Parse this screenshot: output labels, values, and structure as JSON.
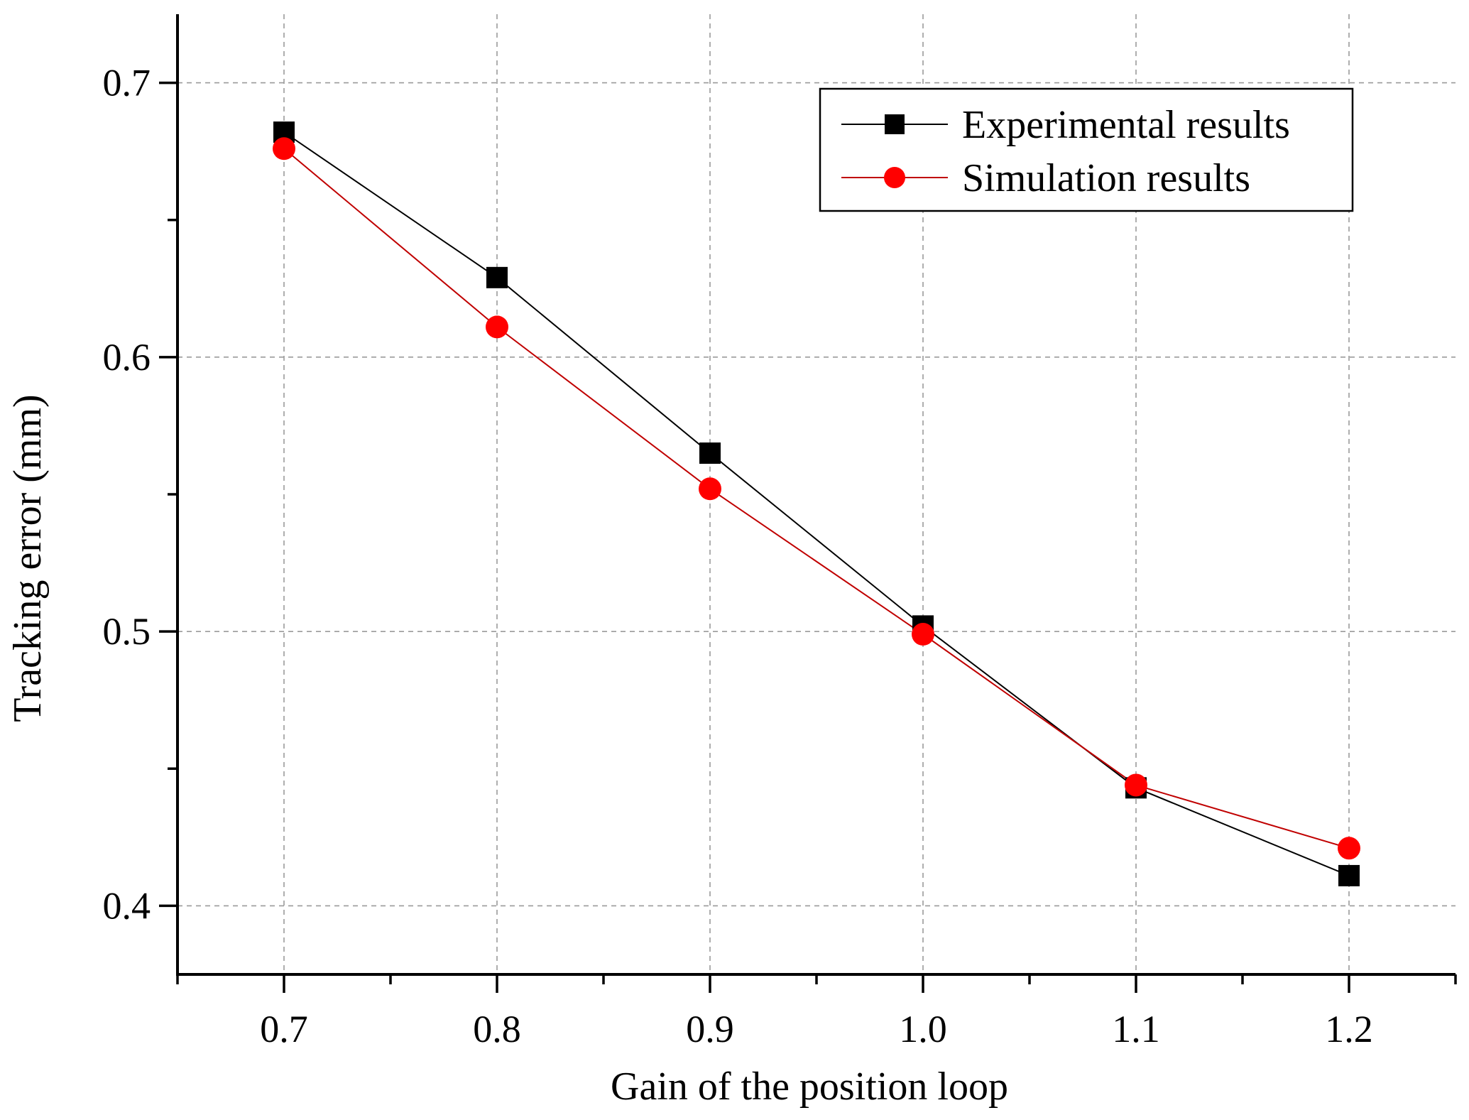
{
  "chart_data": {
    "type": "line",
    "title": "",
    "xlabel": "Gain of the position loop",
    "ylabel": "Tracking error (mm)",
    "xlim": [
      0.65,
      1.25
    ],
    "ylim": [
      0.375,
      0.725
    ],
    "x": [
      0.7,
      0.8,
      0.9,
      1.0,
      1.1,
      1.2
    ],
    "x_tick_labels": [
      "0.7",
      "0.8",
      "0.9",
      "1.0",
      "1.1",
      "1.2"
    ],
    "y_ticks": [
      0.4,
      0.5,
      0.6,
      0.7
    ],
    "y_tick_labels": [
      "0.4",
      "0.5",
      "0.6",
      "0.7"
    ],
    "grid": true,
    "legend_position": "top-right",
    "series": [
      {
        "name": "Experimental results",
        "marker": "square",
        "color": "#000000",
        "values": [
          0.682,
          0.629,
          0.565,
          0.502,
          0.443,
          0.411
        ]
      },
      {
        "name": "Simulation results",
        "marker": "circle",
        "color": "#ff0000",
        "line_color": "#c00000",
        "values": [
          0.676,
          0.611,
          0.552,
          0.499,
          0.444,
          0.421
        ]
      }
    ]
  }
}
